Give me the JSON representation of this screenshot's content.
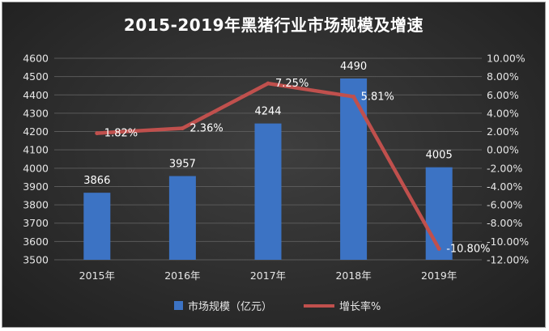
{
  "chart_data": {
    "type": "bar+line",
    "title": "2015-2019年黑猪行业市场规模及增速",
    "categories": [
      "2015年",
      "2016年",
      "2017年",
      "2018年",
      "2019年"
    ],
    "series": [
      {
        "name": "市场规模（亿元）",
        "type": "bar",
        "axis": "left",
        "values": [
          3866,
          3957,
          4244,
          4490,
          4005
        ],
        "labels": [
          "3866",
          "3957",
          "4244",
          "4490",
          "4005"
        ],
        "color": "#3c73c4"
      },
      {
        "name": "增长率%",
        "type": "line",
        "axis": "right",
        "values": [
          1.82,
          2.36,
          7.25,
          5.81,
          -10.8
        ],
        "labels": [
          "1.82%",
          "2.36%",
          "7.25%",
          "5.81%",
          "-10.80%"
        ],
        "color": "#c0504d"
      }
    ],
    "y_left": {
      "min": 3500,
      "max": 4600,
      "ticks": [
        "3500",
        "3600",
        "3700",
        "3800",
        "3900",
        "4000",
        "4100",
        "4200",
        "4300",
        "4400",
        "4500",
        "4600"
      ]
    },
    "y_right": {
      "min": -12,
      "max": 10,
      "ticks": [
        "-12.00%",
        "-10.00%",
        "-8.00%",
        "-6.00%",
        "-4.00%",
        "-2.00%",
        "0.00%",
        "2.00%",
        "4.00%",
        "6.00%",
        "8.00%",
        "10.00%"
      ]
    },
    "grid": true,
    "legend": "bottom",
    "background": "#2e2e2e"
  }
}
